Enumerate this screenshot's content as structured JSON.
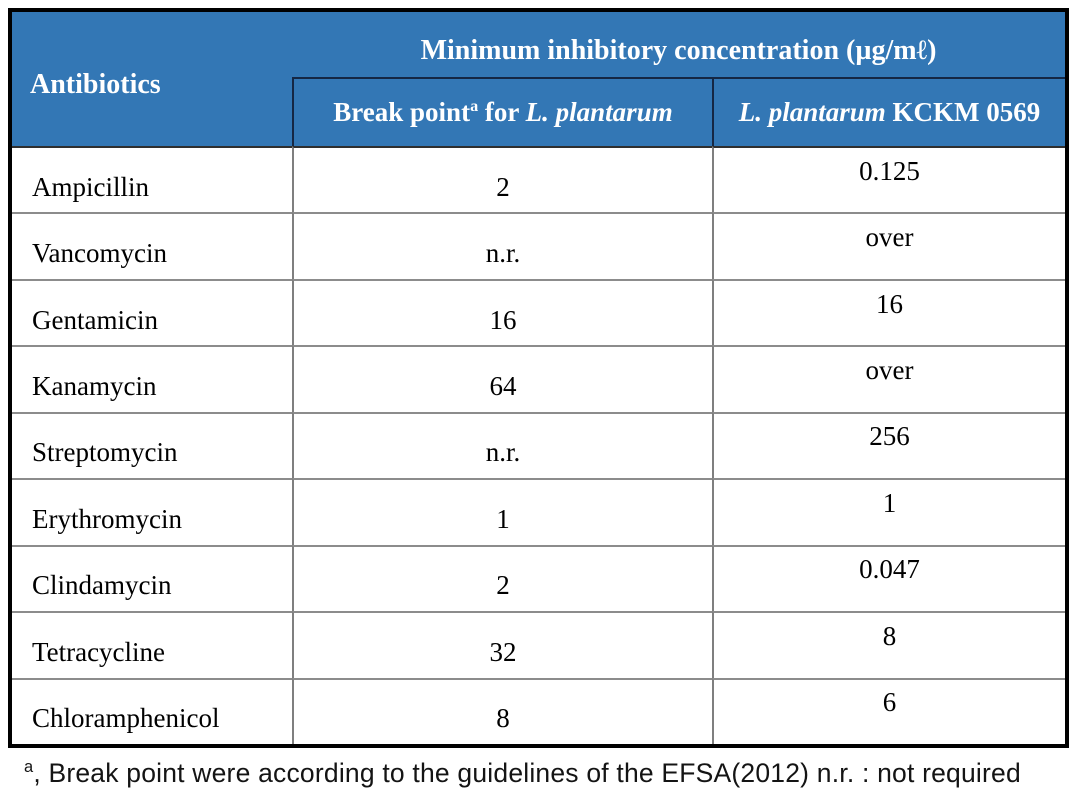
{
  "table": {
    "header": {
      "antibiotics": "Antibiotics",
      "mic_group": "Minimum inhibitory concentration (µg/mℓ)",
      "break_point": {
        "text": "Break point",
        "sup": "a",
        "mid": " for ",
        "species": "L. plantarum"
      },
      "strain": {
        "species": "L. plantarum",
        "rest": " KCKM 0569"
      }
    },
    "rows": [
      {
        "antibiotic": "Ampicillin",
        "break_point": "2",
        "mic": "0.125"
      },
      {
        "antibiotic": "Vancomycin",
        "break_point": "n.r.",
        "mic": "over"
      },
      {
        "antibiotic": "Gentamicin",
        "break_point": "16",
        "mic": "16"
      },
      {
        "antibiotic": "Kanamycin",
        "break_point": "64",
        "mic": "over"
      },
      {
        "antibiotic": "Streptomycin",
        "break_point": "n.r.",
        "mic": "256"
      },
      {
        "antibiotic": "Erythromycin",
        "break_point": "1",
        "mic": "1"
      },
      {
        "antibiotic": "Clindamycin",
        "break_point": "2",
        "mic": "0.047"
      },
      {
        "antibiotic": "Tetracycline",
        "break_point": "32",
        "mic": "8"
      },
      {
        "antibiotic": "Chloramphenicol",
        "break_point": "8",
        "mic": "6"
      }
    ]
  },
  "footnote": {
    "sup": "a",
    "text": ", Break point were according to the guidelines of the EFSA(2012) n.r. : not required"
  },
  "colors": {
    "header_bg": "#3377b5",
    "header_text": "#ffffff",
    "outer_border": "#000000",
    "header_grid_line": "#152744",
    "body_grid_line": "#7f7f7f",
    "body_text": "#000000"
  }
}
